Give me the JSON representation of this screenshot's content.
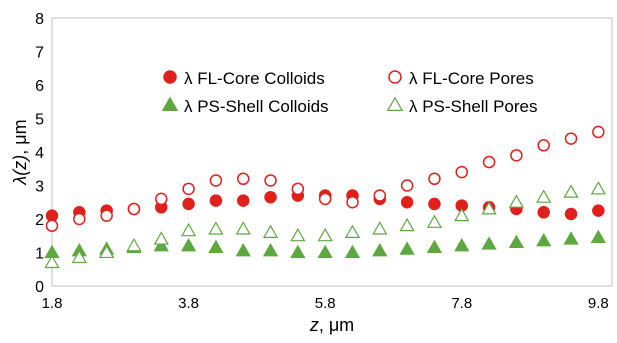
{
  "chart_data": {
    "type": "scatter",
    "xlabel": "z, μm",
    "ylabel": "λ(z), μm",
    "xlim": [
      1.8,
      10.0
    ],
    "ylim": [
      0,
      8
    ],
    "xticks": [
      1.8,
      3.8,
      5.8,
      7.8,
      9.8
    ],
    "xtick_labels": [
      "1.8",
      "3.8",
      "5.8",
      "7.8",
      "9.8"
    ],
    "yticks": [
      0,
      1,
      2,
      3,
      4,
      5,
      6,
      7,
      8
    ],
    "ytick_labels": [
      "0",
      "1",
      "2",
      "3",
      "4",
      "5",
      "6",
      "7",
      "8"
    ],
    "grid": false,
    "legend_position": "upper-center, two columns",
    "series": [
      {
        "name": "λ FL-Core Colloids",
        "marker": "circle",
        "filled": true,
        "color": "#e0201b",
        "x": [
          1.8,
          2.2,
          2.6,
          3.0,
          3.4,
          3.8,
          4.2,
          4.6,
          5.0,
          5.4,
          5.8,
          6.2,
          6.6,
          7.0,
          7.4,
          7.8,
          8.2,
          8.6,
          9.0,
          9.4,
          9.8
        ],
        "y": [
          2.1,
          2.2,
          2.25,
          2.3,
          2.35,
          2.45,
          2.55,
          2.55,
          2.65,
          2.7,
          2.7,
          2.7,
          2.6,
          2.5,
          2.45,
          2.4,
          2.35,
          2.3,
          2.2,
          2.15,
          2.25
        ]
      },
      {
        "name": "λ FL-Core Pores",
        "marker": "circle",
        "filled": false,
        "color": "#e0201b",
        "x": [
          1.8,
          2.2,
          2.6,
          3.0,
          3.4,
          3.8,
          4.2,
          4.6,
          5.0,
          5.4,
          5.8,
          6.2,
          6.6,
          7.0,
          7.4,
          7.8,
          8.2,
          8.6,
          9.0,
          9.4,
          9.8
        ],
        "y": [
          1.8,
          2.0,
          2.1,
          2.3,
          2.6,
          2.9,
          3.15,
          3.2,
          3.15,
          2.9,
          2.6,
          2.5,
          2.7,
          3.0,
          3.2,
          3.4,
          3.7,
          3.9,
          4.2,
          4.4,
          4.6
        ]
      },
      {
        "name": "λ PS-Shell Colloids",
        "marker": "triangle",
        "filled": true,
        "color": "#5ea840",
        "x": [
          1.8,
          2.2,
          2.6,
          3.0,
          3.4,
          3.8,
          4.2,
          4.6,
          5.0,
          5.4,
          5.8,
          6.2,
          6.6,
          7.0,
          7.4,
          7.8,
          8.2,
          8.6,
          9.0,
          9.4,
          9.8
        ],
        "y": [
          1.0,
          1.05,
          1.1,
          1.15,
          1.2,
          1.2,
          1.15,
          1.05,
          1.05,
          1.0,
          1.0,
          1.0,
          1.05,
          1.1,
          1.15,
          1.2,
          1.25,
          1.3,
          1.35,
          1.4,
          1.45
        ]
      },
      {
        "name": "λ PS-Shell Pores",
        "marker": "triangle",
        "filled": false,
        "color": "#5ea840",
        "x": [
          1.8,
          2.2,
          2.6,
          3.0,
          3.4,
          3.8,
          4.2,
          4.6,
          5.0,
          5.4,
          5.8,
          6.2,
          6.6,
          7.0,
          7.4,
          7.8,
          8.2,
          8.6,
          9.0,
          9.4,
          9.8
        ],
        "y": [
          0.7,
          0.85,
          1.0,
          1.2,
          1.4,
          1.65,
          1.7,
          1.7,
          1.6,
          1.5,
          1.5,
          1.6,
          1.7,
          1.8,
          1.9,
          2.1,
          2.3,
          2.5,
          2.65,
          2.8,
          2.9
        ]
      }
    ]
  }
}
